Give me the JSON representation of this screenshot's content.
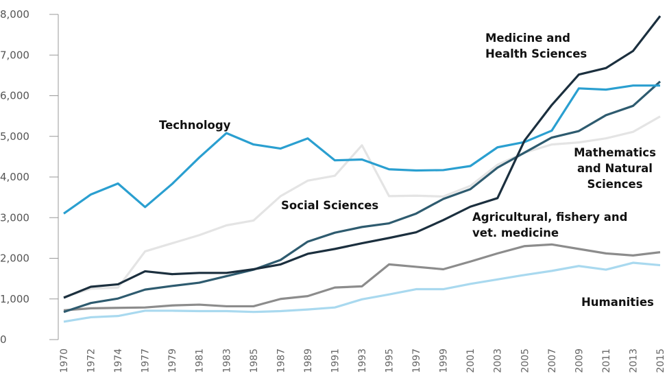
{
  "chart_data": {
    "type": "line",
    "categories": [
      "1970",
      "1972",
      "1974",
      "1977",
      "1979",
      "1981",
      "1983",
      "1985",
      "1987",
      "1989",
      "1991",
      "1993",
      "1995",
      "1997",
      "1999",
      "2001",
      "2003",
      "2005",
      "2007",
      "2009",
      "2011",
      "2013",
      "2015"
    ],
    "ylim": [
      0,
      8000
    ],
    "yticks": [
      0,
      {
        "value": 1000,
        "label": "1,000"
      },
      {
        "value": 2000,
        "label": "2,000"
      },
      {
        "value": 3000,
        "label": "3,000"
      },
      {
        "value": 4000,
        "label": "4,000"
      },
      {
        "value": 5000,
        "label": "5,000"
      },
      {
        "value": 6000,
        "label": "6,000"
      },
      {
        "value": 7000,
        "label": "7,000"
      },
      {
        "value": 8000,
        "label": "8,000"
      }
    ],
    "series": [
      {
        "name": "Social Sciences",
        "color": "#e4e4e4",
        "values": [
          1050,
          1250,
          1280,
          2170,
          2370,
          2570,
          2810,
          2930,
          3530,
          3910,
          4030,
          4780,
          3530,
          3540,
          3520,
          3780,
          4300,
          4600,
          4800,
          4850,
          4950,
          5110,
          5490
        ]
      },
      {
        "name": "Humanities",
        "color": "#a9d9ef",
        "values": [
          440,
          550,
          580,
          710,
          710,
          700,
          700,
          680,
          700,
          740,
          790,
          990,
          1110,
          1240,
          1240,
          1370,
          1480,
          1590,
          1690,
          1810,
          1720,
          1890,
          1830
        ]
      },
      {
        "name": "Agricultural, fishery and vet. medicine",
        "color": "#8c8c8c",
        "values": [
          720,
          770,
          780,
          790,
          840,
          860,
          820,
          820,
          1000,
          1070,
          1280,
          1310,
          1850,
          1790,
          1730,
          1920,
          2120,
          2300,
          2340,
          2230,
          2120,
          2070,
          2150
        ]
      },
      {
        "name": "Mathematics and Natural Sciences",
        "color": "#2e5b6f",
        "values": [
          680,
          900,
          1010,
          1230,
          1320,
          1400,
          1560,
          1720,
          1960,
          2410,
          2630,
          2770,
          2860,
          3100,
          3460,
          3700,
          4230,
          4600,
          4970,
          5130,
          5520,
          5750,
          6350
        ]
      },
      {
        "name": "Technology",
        "color": "#2a9fd0",
        "values": [
          3100,
          3570,
          3840,
          3260,
          3830,
          4480,
          5080,
          4800,
          4700,
          4950,
          4410,
          4430,
          4190,
          4160,
          4170,
          4270,
          4730,
          4860,
          5140,
          6180,
          6150,
          6250,
          6250
        ]
      },
      {
        "name": "Medicine and Health Sciences",
        "color": "#1b2f3e",
        "values": [
          1030,
          1300,
          1360,
          1680,
          1610,
          1640,
          1640,
          1730,
          1850,
          2110,
          2230,
          2370,
          2500,
          2640,
          2940,
          3270,
          3480,
          4900,
          5770,
          6520,
          6680,
          7100,
          7960
        ]
      }
    ]
  }
}
